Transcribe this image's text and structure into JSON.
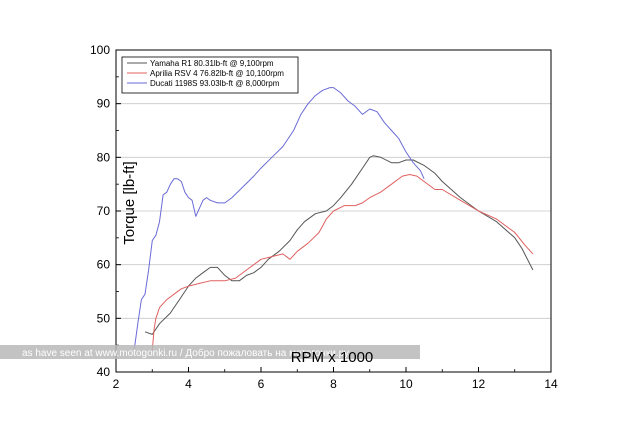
{
  "chart_data": {
    "type": "line",
    "xlabel": "RPM x 1000",
    "ylabel": "Torque [lb-ft]",
    "xlim": [
      2,
      14
    ],
    "ylim": [
      40,
      100
    ],
    "x_ticks": [
      2,
      4,
      6,
      8,
      10,
      12,
      14
    ],
    "y_ticks": [
      40,
      50,
      60,
      70,
      80,
      90,
      100
    ],
    "grid": "horizontal",
    "legend_position": "top-left",
    "watermark": "as have seen at www.motogonki.ru / Добро пожаловать на мотогонки.ру",
    "series": [
      {
        "name": "Yamaha R1 80.31lb-ft @ 9,100rpm",
        "color": "#555555",
        "x": [
          2.8,
          3.0,
          3.2,
          3.5,
          3.8,
          4.0,
          4.2,
          4.4,
          4.6,
          4.8,
          5.0,
          5.2,
          5.4,
          5.6,
          5.8,
          6.0,
          6.2,
          6.5,
          6.8,
          7.0,
          7.2,
          7.5,
          7.8,
          8.0,
          8.2,
          8.5,
          8.8,
          9.0,
          9.1,
          9.3,
          9.6,
          9.8,
          10.0,
          10.2,
          10.5,
          10.8,
          11.0,
          11.5,
          12.0,
          12.5,
          13.0,
          13.2,
          13.5
        ],
        "y": [
          47.5,
          47,
          49,
          51,
          54,
          56,
          57.5,
          58.5,
          59.5,
          59.5,
          58,
          57,
          57,
          58,
          58.5,
          59.5,
          61,
          62.5,
          64.5,
          66.5,
          68,
          69.5,
          70,
          71,
          72.5,
          75,
          78,
          80,
          80.3,
          80,
          79,
          79,
          79.5,
          79.5,
          78.5,
          77,
          75.5,
          72.5,
          70,
          68,
          65,
          63,
          59
        ]
      },
      {
        "name": "Aprilia RSV 4 76.82lb-ft @ 10,100rpm",
        "color": "#e06060",
        "x": [
          3.0,
          3.05,
          3.1,
          3.2,
          3.4,
          3.6,
          3.8,
          4.0,
          4.3,
          4.6,
          4.8,
          5.0,
          5.3,
          5.6,
          6.0,
          6.3,
          6.6,
          6.8,
          7.0,
          7.3,
          7.6,
          7.8,
          8.0,
          8.3,
          8.6,
          8.8,
          9.0,
          9.3,
          9.6,
          9.9,
          10.1,
          10.3,
          10.5,
          10.8,
          11.0,
          11.5,
          12.0,
          12.5,
          13.0,
          13.3,
          13.5
        ],
        "y": [
          44,
          48,
          50,
          52,
          53.5,
          54.5,
          55.5,
          56,
          56.5,
          57,
          57,
          57,
          57.5,
          59,
          61,
          61.5,
          62,
          61,
          62.5,
          64,
          66,
          68.5,
          70,
          71,
          71,
          71.5,
          72.5,
          73.5,
          75,
          76.5,
          76.8,
          76.5,
          75.5,
          74,
          74,
          72,
          70,
          68.5,
          66,
          63.5,
          62
        ]
      },
      {
        "name": "Ducati 1198S 93.03lb-ft @ 8,000rpm",
        "color": "#6a6ad8",
        "x": [
          2.5,
          2.6,
          2.7,
          2.8,
          2.9,
          3.0,
          3.1,
          3.2,
          3.3,
          3.4,
          3.5,
          3.6,
          3.7,
          3.8,
          3.9,
          4.0,
          4.1,
          4.2,
          4.3,
          4.4,
          4.5,
          4.6,
          4.8,
          5.0,
          5.2,
          5.5,
          5.8,
          6.0,
          6.3,
          6.6,
          6.9,
          7.1,
          7.3,
          7.5,
          7.7,
          7.9,
          8.0,
          8.2,
          8.4,
          8.6,
          8.8,
          9.0,
          9.2,
          9.4,
          9.6,
          9.8,
          10.0,
          10.2,
          10.4,
          10.5
        ],
        "y": [
          44,
          49,
          53.5,
          54.5,
          59,
          64.5,
          65.5,
          68,
          73,
          73.5,
          75,
          76,
          76,
          75.5,
          73.5,
          72.5,
          72,
          69,
          70.5,
          72,
          72.5,
          72,
          71.5,
          71.5,
          72.5,
          74.5,
          76.5,
          78,
          80,
          82,
          85,
          88,
          90,
          91.5,
          92.5,
          93,
          93,
          92,
          90.5,
          89.5,
          88,
          89,
          88.5,
          86.5,
          85,
          83.5,
          81,
          79,
          77.5,
          76
        ]
      }
    ]
  }
}
